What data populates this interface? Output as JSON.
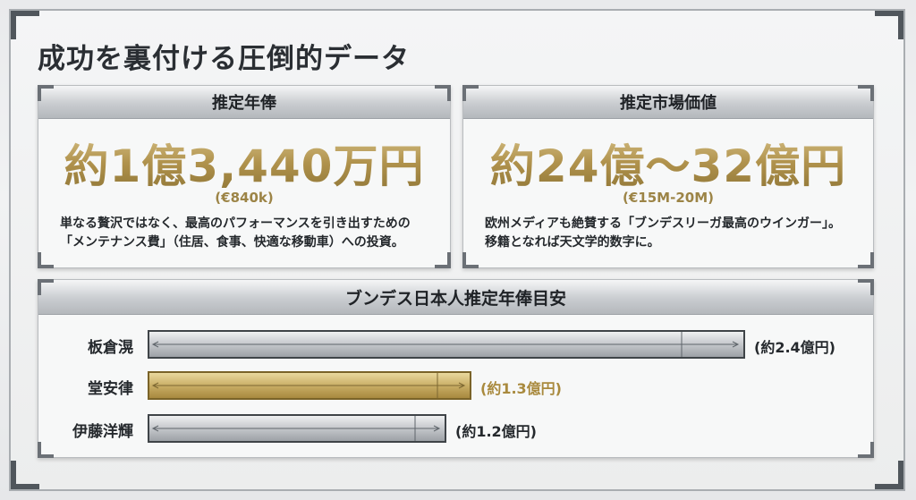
{
  "title": "成功を裏付ける圧倒的データ",
  "cards": [
    {
      "header": "推定年俸",
      "figure": "約1億3,440万円",
      "sub": "(€840k)",
      "desc_lines": [
        "単なる贅沢ではなく、最高のパフォーマンスを引き出すための",
        "「メンテナンス費」（住居、食事、快適な移動車）への投資。"
      ]
    },
    {
      "header": "推定市場価値",
      "figure": "約24億〜32億円",
      "sub": "(€15M-20M)",
      "desc_lines": [
        "欧州メディアも絶賛する「ブンデスリーガ最高のウインガー」。",
        "移籍となれば天文学的数字に。"
      ]
    }
  ],
  "colors": {
    "gold": "#b0924c",
    "gold_label": "#a98a3e",
    "silver": "#c4c7cb",
    "text_dark": "#25292d"
  },
  "chart_data": {
    "type": "bar",
    "orientation": "horizontal",
    "title": "ブンデス日本人推定年俸目安",
    "categories": [
      "板倉滉",
      "堂安律",
      "伊藤洋輝"
    ],
    "values": [
      2.4,
      1.3,
      1.2
    ],
    "value_labels": [
      "(約2.4億円)",
      "(約1.3億円)",
      "(約1.2億円)"
    ],
    "unit": "億円",
    "highlight_index": 1,
    "xlim": [
      0,
      2.4
    ],
    "grid": false,
    "legend": "none"
  }
}
